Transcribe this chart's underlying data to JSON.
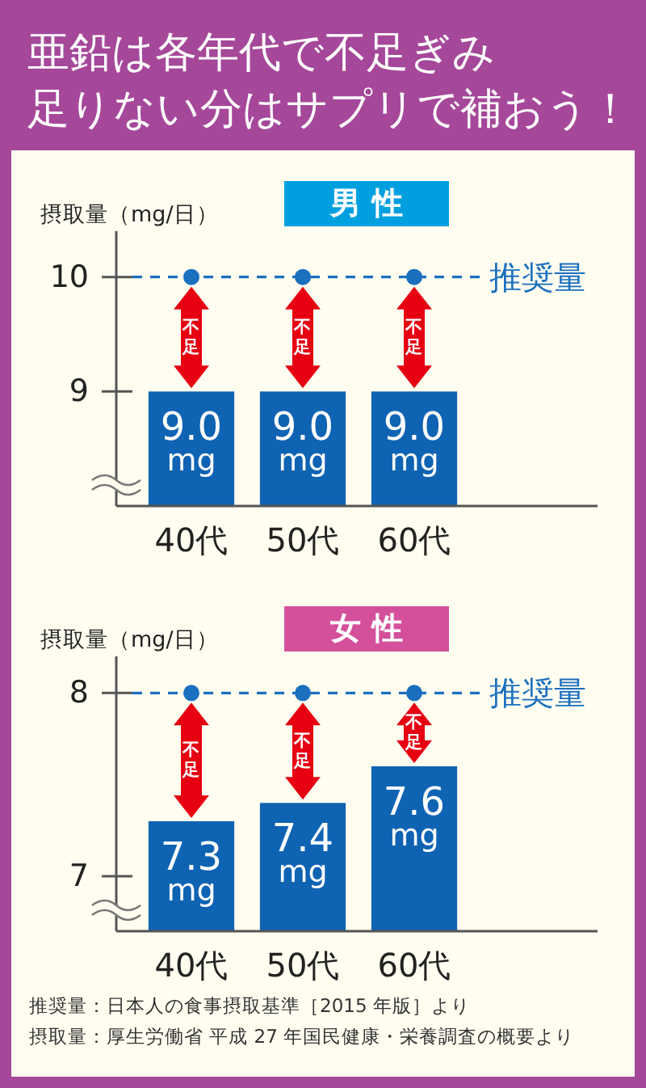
{
  "chart_data": [
    {
      "type": "bar",
      "title": "男 性",
      "ylabel": "摂取量（mg/日）",
      "categories": [
        "40代",
        "50代",
        "60代"
      ],
      "values": [
        9.0,
        9.0,
        9.0
      ],
      "color": "#0f63b3",
      "value_labels": [
        "9.0\nmg",
        "9.0\nmg",
        "9.0\nmg"
      ],
      "ylim": [
        8.0,
        10.4
      ],
      "yticks": [
        9,
        10
      ],
      "ref_lines": [
        {
          "axis": "y",
          "value": 10,
          "label": "推奨量",
          "color": "#1a6fbf",
          "line_style": "dashed"
        }
      ],
      "annotations": [
        "不足",
        "不足",
        "不足",
        "亜鉛は各年代で不足ぎみ",
        "足りない分はサプリで補おう！"
      ]
    },
    {
      "type": "bar",
      "title": "女 性",
      "ylabel": "摂取量（mg/日）",
      "categories": [
        "40代",
        "50代",
        "60代"
      ],
      "values": [
        7.3,
        7.4,
        7.6
      ],
      "color": "#0f63b3",
      "value_labels": [
        "7.3\nmg",
        "7.4\nmg",
        "7.6\nmg"
      ],
      "ylim": [
        6.7,
        8.2
      ],
      "yticks": [
        7,
        8
      ],
      "ref_lines": [
        {
          "axis": "y",
          "value": 8,
          "label": "推奨量",
          "color": "#1a6fbf",
          "line_style": "dashed"
        }
      ],
      "annotations": [
        "不足",
        "不足",
        "不足",
        "推奨量：日本人の食事摂取基準［2015 年版］より",
        "摂取量：厚生労働省 平成 27 年国民健康・栄養調査の概要より"
      ]
    }
  ]
}
